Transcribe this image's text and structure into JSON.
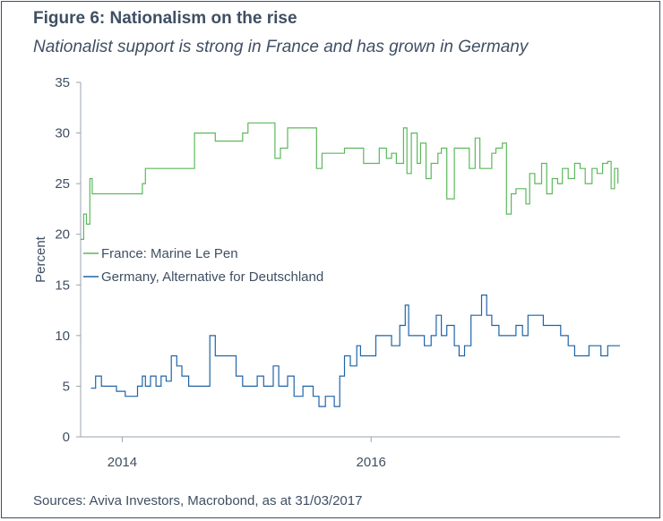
{
  "figure": {
    "title": "Figure 6: Nationalism on the rise",
    "subtitle": "Nationalist support is strong in France and has grown in Germany",
    "source": "Sources: Aviva Investors, Macrobond, as at 31/03/2017"
  },
  "chart_data": {
    "type": "line",
    "ylabel": "Percent",
    "xlabel": "",
    "ylim": [
      0,
      35
    ],
    "xlim": [
      "2013-09-01",
      "2017-12-31"
    ],
    "y_ticks": [
      0,
      5,
      10,
      15,
      20,
      25,
      30,
      35
    ],
    "x_ticks": [
      {
        "label": "2014",
        "date": "2014-01-01"
      },
      {
        "label": "2016",
        "date": "2016-01-01"
      }
    ],
    "grid": false,
    "legend_position": "left",
    "series": [
      {
        "name": "France: Marine Le Pen",
        "color": "#5cb85c",
        "points": [
          [
            "2013-09-01",
            19.5
          ],
          [
            "2013-09-10",
            22
          ],
          [
            "2013-09-18",
            21
          ],
          [
            "2013-09-28",
            25.5
          ],
          [
            "2013-10-05",
            24
          ],
          [
            "2013-11-15",
            24
          ],
          [
            "2014-01-01",
            24
          ],
          [
            "2014-02-15",
            24
          ],
          [
            "2014-03-01",
            25
          ],
          [
            "2014-03-10",
            26.5
          ],
          [
            "2014-05-01",
            26.5
          ],
          [
            "2014-07-15",
            26.5
          ],
          [
            "2014-08-01",
            30
          ],
          [
            "2014-09-15",
            30
          ],
          [
            "2014-10-01",
            29.2
          ],
          [
            "2014-12-01",
            29.2
          ],
          [
            "2014-12-20",
            30
          ],
          [
            "2015-01-05",
            31
          ],
          [
            "2015-03-15",
            31
          ],
          [
            "2015-03-25",
            27.5
          ],
          [
            "2015-04-10",
            28.5
          ],
          [
            "2015-05-01",
            30.5
          ],
          [
            "2015-07-15",
            30.5
          ],
          [
            "2015-07-25",
            26.5
          ],
          [
            "2015-08-10",
            28
          ],
          [
            "2015-10-01",
            28
          ],
          [
            "2015-10-15",
            28.5
          ],
          [
            "2015-12-01",
            28.5
          ],
          [
            "2015-12-10",
            27
          ],
          [
            "2016-01-15",
            27
          ],
          [
            "2016-01-25",
            28.5
          ],
          [
            "2016-02-15",
            27.5
          ],
          [
            "2016-03-01",
            28
          ],
          [
            "2016-03-15",
            27
          ],
          [
            "2016-04-05",
            30.5
          ],
          [
            "2016-04-15",
            26
          ],
          [
            "2016-04-28",
            30
          ],
          [
            "2016-05-15",
            27
          ],
          [
            "2016-05-25",
            29
          ],
          [
            "2016-06-10",
            25.5
          ],
          [
            "2016-06-25",
            27
          ],
          [
            "2016-07-15",
            28
          ],
          [
            "2016-07-25",
            28.5
          ],
          [
            "2016-08-10",
            23.5
          ],
          [
            "2016-09-01",
            28.5
          ],
          [
            "2016-10-01",
            28.5
          ],
          [
            "2016-10-15",
            26.5
          ],
          [
            "2016-11-01",
            29.5
          ],
          [
            "2016-11-15",
            26.5
          ],
          [
            "2016-12-01",
            26.5
          ],
          [
            "2016-12-20",
            28
          ],
          [
            "2017-01-01",
            28.5
          ],
          [
            "2017-01-20",
            29
          ],
          [
            "2017-02-01",
            22
          ],
          [
            "2017-02-15",
            24
          ],
          [
            "2017-03-01",
            24.5
          ],
          [
            "2017-03-20",
            24.5
          ],
          [
            "2017-03-30",
            23
          ],
          [
            "2017-04-10",
            26
          ],
          [
            "2017-04-25",
            25
          ],
          [
            "2017-05-15",
            27
          ],
          [
            "2017-05-30",
            24
          ],
          [
            "2017-06-15",
            25.5
          ],
          [
            "2017-07-01",
            25
          ],
          [
            "2017-07-15",
            26.5
          ],
          [
            "2017-08-01",
            25.5
          ],
          [
            "2017-08-20",
            27
          ],
          [
            "2017-09-05",
            26.5
          ],
          [
            "2017-09-20",
            25
          ],
          [
            "2017-10-10",
            26.5
          ],
          [
            "2017-10-25",
            26
          ],
          [
            "2017-11-10",
            27
          ],
          [
            "2017-11-25",
            27.2
          ],
          [
            "2017-12-05",
            24.5
          ],
          [
            "2017-12-15",
            26.5
          ],
          [
            "2017-12-25",
            25
          ]
        ]
      },
      {
        "name": "Germany, Alternative for Deutschland",
        "color": "#1f64a8",
        "points": [
          [
            "2013-10-01",
            4.8
          ],
          [
            "2013-10-15",
            6
          ],
          [
            "2013-11-01",
            5
          ],
          [
            "2013-12-01",
            5
          ],
          [
            "2013-12-15",
            4.5
          ],
          [
            "2014-01-10",
            4
          ],
          [
            "2014-02-15",
            5
          ],
          [
            "2014-03-01",
            6
          ],
          [
            "2014-03-10",
            5
          ],
          [
            "2014-03-25",
            6
          ],
          [
            "2014-04-10",
            5
          ],
          [
            "2014-04-25",
            6
          ],
          [
            "2014-05-10",
            5.5
          ],
          [
            "2014-05-25",
            8
          ],
          [
            "2014-06-10",
            7
          ],
          [
            "2014-06-25",
            6
          ],
          [
            "2014-07-15",
            5
          ],
          [
            "2014-09-01",
            5
          ],
          [
            "2014-09-15",
            10
          ],
          [
            "2014-10-01",
            8
          ],
          [
            "2014-11-15",
            8
          ],
          [
            "2014-12-01",
            6
          ],
          [
            "2014-12-20",
            5
          ],
          [
            "2015-02-01",
            6
          ],
          [
            "2015-02-20",
            5
          ],
          [
            "2015-03-20",
            7
          ],
          [
            "2015-04-05",
            5
          ],
          [
            "2015-05-01",
            6
          ],
          [
            "2015-05-20",
            4
          ],
          [
            "2015-06-15",
            5
          ],
          [
            "2015-07-15",
            4
          ],
          [
            "2015-08-01",
            3
          ],
          [
            "2015-08-20",
            4
          ],
          [
            "2015-09-15",
            3
          ],
          [
            "2015-10-01",
            6
          ],
          [
            "2015-10-15",
            8
          ],
          [
            "2015-11-01",
            7
          ],
          [
            "2015-11-20",
            9
          ],
          [
            "2015-12-01",
            8
          ],
          [
            "2016-01-01",
            8
          ],
          [
            "2016-01-15",
            10
          ],
          [
            "2016-02-15",
            10
          ],
          [
            "2016-03-01",
            9
          ],
          [
            "2016-03-25",
            11
          ],
          [
            "2016-04-10",
            13
          ],
          [
            "2016-04-20",
            10
          ],
          [
            "2016-05-20",
            10
          ],
          [
            "2016-06-05",
            9
          ],
          [
            "2016-06-25",
            10
          ],
          [
            "2016-07-10",
            12
          ],
          [
            "2016-07-25",
            10
          ],
          [
            "2016-08-10",
            11
          ],
          [
            "2016-09-01",
            9
          ],
          [
            "2016-09-15",
            8
          ],
          [
            "2016-10-01",
            9
          ],
          [
            "2016-10-20",
            12
          ],
          [
            "2016-11-05",
            12
          ],
          [
            "2016-11-20",
            14
          ],
          [
            "2016-12-05",
            12
          ],
          [
            "2016-12-20",
            11
          ],
          [
            "2017-01-10",
            10
          ],
          [
            "2017-02-15",
            10
          ],
          [
            "2017-03-01",
            11
          ],
          [
            "2017-03-20",
            10
          ],
          [
            "2017-04-05",
            12
          ],
          [
            "2017-05-10",
            12
          ],
          [
            "2017-05-20",
            11
          ],
          [
            "2017-06-20",
            11
          ],
          [
            "2017-07-10",
            10
          ],
          [
            "2017-08-01",
            9
          ],
          [
            "2017-08-20",
            8
          ],
          [
            "2017-09-15",
            8
          ],
          [
            "2017-10-01",
            9
          ],
          [
            "2017-10-25",
            9
          ],
          [
            "2017-11-05",
            8
          ],
          [
            "2017-11-25",
            9
          ],
          [
            "2017-12-31",
            9
          ]
        ]
      }
    ]
  }
}
